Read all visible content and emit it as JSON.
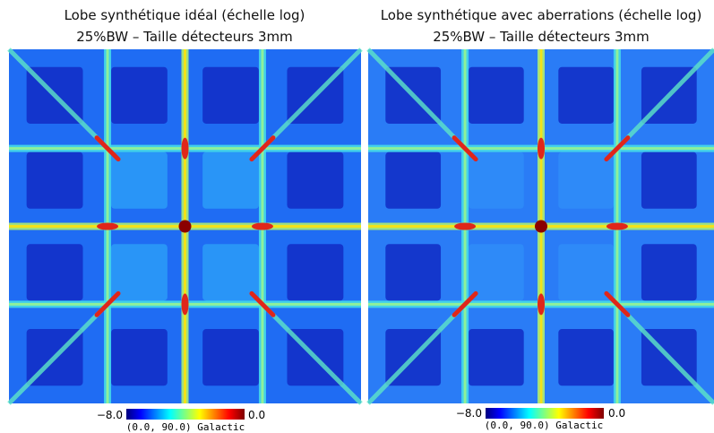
{
  "panels": [
    {
      "title": [
        "Lobe synthétique idéal (échelle log)",
        "25%BW – Taille détecteurs 3mm"
      ],
      "colorbar": {
        "min": "−8.0",
        "max": "0.0"
      },
      "caption": "(0.0, 90.0) Galactic"
    },
    {
      "title": [
        "Lobe synthétique avec aberrations (échelle log)",
        "25%BW – Taille détecteurs 3mm"
      ],
      "colorbar": {
        "min": "−8.0",
        "max": "0.0"
      },
      "caption": "(0.0, 90.0) Galactic"
    }
  ]
}
